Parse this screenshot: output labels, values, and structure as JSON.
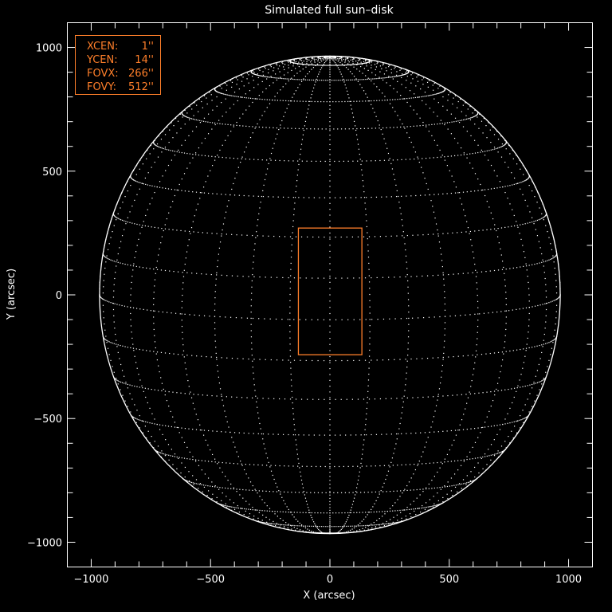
{
  "chart_data": {
    "type": "scatter",
    "title": "Simulated full sun–disk",
    "xlabel": "X (arcsec)",
    "ylabel": "Y (arcsec)",
    "xlim": [
      -1100,
      1100
    ],
    "ylim": [
      -1100,
      1100
    ],
    "xticks": [
      -1000,
      -500,
      0,
      500,
      1000
    ],
    "xtick_labels": [
      "−1000",
      "−500",
      "0",
      "500",
      "1000"
    ],
    "yticks": [
      -1000,
      -500,
      0,
      500,
      1000
    ],
    "ytick_labels": [
      "−1000",
      "−500",
      "0",
      "500",
      "1000"
    ],
    "minor_tick_step": 100,
    "grid": false,
    "solar_disk": {
      "radius_arcsec": 965,
      "b0_deg": 6,
      "grid_spacing_deg": 10,
      "limb_color": "#ffffff",
      "grid_color": "#ffffff"
    },
    "fov_box": {
      "xcen": 1,
      "ycen": 14,
      "fovx": 266,
      "fovy": 512,
      "color": "#ff7f2a"
    },
    "legend": {
      "placement": "top-left",
      "lines": [
        {
          "key": "XCEN:",
          "value": "1''"
        },
        {
          "key": "YCEN:",
          "value": "14''"
        },
        {
          "key": "FOVX:",
          "value": "266''"
        },
        {
          "key": "FOVY:",
          "value": "512''"
        }
      ]
    }
  },
  "colors": {
    "background": "#000000",
    "axes": "#ffffff",
    "accent": "#ff7f2a"
  }
}
